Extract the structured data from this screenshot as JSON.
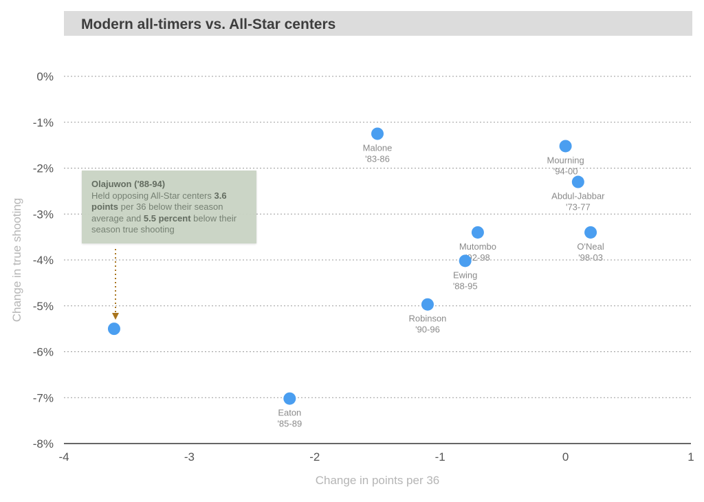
{
  "chart_data": {
    "type": "scatter",
    "title": "Modern all-timers vs. All-Star centers",
    "xlabel": "Change in points per 36",
    "ylabel": "Change in true shooting",
    "xlim": [
      -4,
      1
    ],
    "ylim": [
      -8,
      0
    ],
    "x_ticks": [
      -4,
      -3,
      -2,
      -1,
      0,
      1
    ],
    "x_tick_labels": [
      "-4",
      "-3",
      "-2",
      "-1",
      "0",
      "1"
    ],
    "y_ticks": [
      0,
      -1,
      -2,
      -3,
      -4,
      -5,
      -6,
      -7,
      -8
    ],
    "y_tick_labels": [
      "0%",
      "-1%",
      "-2%",
      "-3%",
      "-4%",
      "-5%",
      "-6%",
      "-7%",
      "-8%"
    ],
    "grid": "horizontal dotted",
    "point_color": "#4a9ef0",
    "points": [
      {
        "name": "Malone",
        "years": "'83-86",
        "x": -1.5,
        "y": -1.25
      },
      {
        "name": "Mourning",
        "years": "'94-00",
        "x": 0.0,
        "y": -1.52
      },
      {
        "name": "Abdul-Jabbar",
        "years": "'73-77",
        "x": 0.1,
        "y": -2.3
      },
      {
        "name": "O'Neal",
        "years": "'98-03",
        "x": 0.2,
        "y": -3.4
      },
      {
        "name": "Mutombo",
        "years": "'92-98",
        "x": -0.7,
        "y": -3.4
      },
      {
        "name": "Ewing",
        "years": "'88-95",
        "x": -0.8,
        "y": -4.02
      },
      {
        "name": "Robinson",
        "years": "'90-96",
        "x": -1.1,
        "y": -4.97
      },
      {
        "name": "Eaton",
        "years": "'85-89",
        "x": -2.2,
        "y": -7.02
      },
      {
        "name": "",
        "years": "",
        "x": -3.6,
        "y": -5.5
      }
    ],
    "annotation": {
      "title": "Olajuwon ('88-94)",
      "text_1": "Held opposing All-Star centers ",
      "bold_1": "3.6 points",
      "text_2": " per 36 below their season average and ",
      "bold_2": "5.5 percent",
      "text_3": " below their season true shooting",
      "arrow_color": "#a8741d"
    }
  }
}
